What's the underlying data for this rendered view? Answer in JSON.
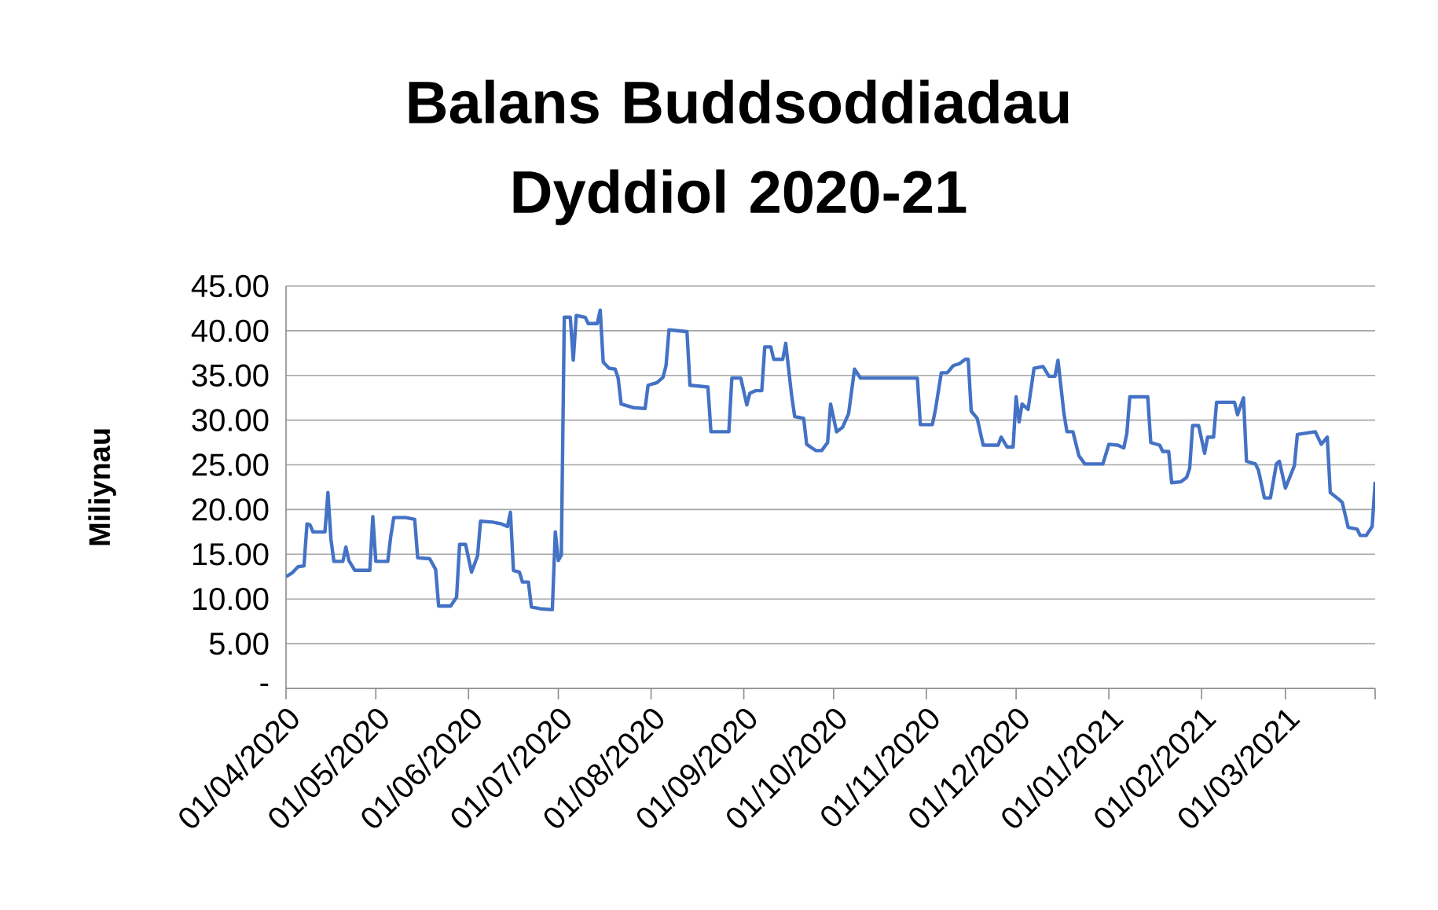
{
  "chart_data": {
    "type": "line",
    "title": "Balans Buddsoddiadau Dyddiol 2020-21",
    "ylabel": "Miliynau",
    "grid": "y",
    "xlim": [
      "2020-04-01",
      "2021-03-31"
    ],
    "xticks": [
      {
        "value": "2020-04-01",
        "label": "01/04/2020"
      },
      {
        "value": "2020-05-01",
        "label": "01/05/2020"
      },
      {
        "value": "2020-06-01",
        "label": "01/06/2020"
      },
      {
        "value": "2020-07-01",
        "label": "01/07/2020"
      },
      {
        "value": "2020-08-01",
        "label": "01/08/2020"
      },
      {
        "value": "2020-09-01",
        "label": "01/09/2020"
      },
      {
        "value": "2020-10-01",
        "label": "01/10/2020"
      },
      {
        "value": "2020-11-01",
        "label": "01/11/2020"
      },
      {
        "value": "2020-12-01",
        "label": "01/12/2020"
      },
      {
        "value": "2021-01-01",
        "label": "01/01/2021"
      },
      {
        "value": "2021-02-01",
        "label": "01/02/2021"
      },
      {
        "value": "2021-03-01",
        "label": "01/03/2021"
      },
      {
        "value": "2021-03-31",
        "label": null
      }
    ],
    "ylim": [
      0,
      45
    ],
    "yticks": [
      {
        "value": 0,
        "label": "-"
      },
      {
        "value": 5,
        "label": "5.00"
      },
      {
        "value": 10,
        "label": "10.00"
      },
      {
        "value": 15,
        "label": "15.00"
      },
      {
        "value": 20,
        "label": "20.00"
      },
      {
        "value": 25,
        "label": "25.00"
      },
      {
        "value": 30,
        "label": "30.00"
      },
      {
        "value": 35,
        "label": "35.00"
      },
      {
        "value": 40,
        "label": "40.00"
      },
      {
        "value": 45,
        "label": "45.00"
      }
    ],
    "x": [
      "2020-04-01",
      "2020-04-03",
      "2020-04-05",
      "2020-04-07",
      "2020-04-08",
      "2020-04-09",
      "2020-04-10",
      "2020-04-14",
      "2020-04-15",
      "2020-04-16",
      "2020-04-17",
      "2020-04-20",
      "2020-04-21",
      "2020-04-22",
      "2020-04-24",
      "2020-04-29",
      "2020-04-30",
      "2020-05-01",
      "2020-05-05",
      "2020-05-06",
      "2020-05-07",
      "2020-05-11",
      "2020-05-14",
      "2020-05-15",
      "2020-05-19",
      "2020-05-21",
      "2020-05-22",
      "2020-05-26",
      "2020-05-28",
      "2020-05-29",
      "2020-05-31",
      "2020-06-02",
      "2020-06-04",
      "2020-06-05",
      "2020-06-09",
      "2020-06-12",
      "2020-06-14",
      "2020-06-15",
      "2020-06-16",
      "2020-06-18",
      "2020-06-19",
      "2020-06-21",
      "2020-06-22",
      "2020-06-25",
      "2020-06-29",
      "2020-06-30",
      "2020-07-01",
      "2020-07-02",
      "2020-07-03",
      "2020-07-05",
      "2020-07-06",
      "2020-07-07",
      "2020-07-10",
      "2020-07-11",
      "2020-07-14",
      "2020-07-15",
      "2020-07-16",
      "2020-07-18",
      "2020-07-20",
      "2020-07-21",
      "2020-07-22",
      "2020-07-26",
      "2020-07-30",
      "2020-07-31",
      "2020-08-03",
      "2020-08-05",
      "2020-08-06",
      "2020-08-07",
      "2020-08-13",
      "2020-08-14",
      "2020-08-20",
      "2020-08-21",
      "2020-08-27",
      "2020-08-28",
      "2020-08-31",
      "2020-09-02",
      "2020-09-03",
      "2020-09-05",
      "2020-09-07",
      "2020-09-08",
      "2020-09-10",
      "2020-09-11",
      "2020-09-14",
      "2020-09-15",
      "2020-09-17",
      "2020-09-18",
      "2020-09-21",
      "2020-09-22",
      "2020-09-25",
      "2020-09-27",
      "2020-09-29",
      "2020-09-30",
      "2020-10-02",
      "2020-10-04",
      "2020-10-06",
      "2020-10-08",
      "2020-10-10",
      "2020-10-29",
      "2020-10-30",
      "2020-11-03",
      "2020-11-04",
      "2020-11-06",
      "2020-11-08",
      "2020-11-10",
      "2020-11-12",
      "2020-11-14",
      "2020-11-15",
      "2020-11-16",
      "2020-11-18",
      "2020-11-20",
      "2020-11-25",
      "2020-11-26",
      "2020-11-28",
      "2020-11-30",
      "2020-12-01",
      "2020-12-02",
      "2020-12-03",
      "2020-12-05",
      "2020-12-07",
      "2020-12-10",
      "2020-12-12",
      "2020-12-14",
      "2020-12-15",
      "2020-12-17",
      "2020-12-18",
      "2020-12-20",
      "2020-12-22",
      "2020-12-24",
      "2020-12-30",
      "2021-01-01",
      "2021-01-04",
      "2021-01-06",
      "2021-01-07",
      "2021-01-08",
      "2021-01-14",
      "2021-01-15",
      "2021-01-18",
      "2021-01-19",
      "2021-01-21",
      "2021-01-22",
      "2021-01-25",
      "2021-01-27",
      "2021-01-28",
      "2021-01-29",
      "2021-01-31",
      "2021-02-02",
      "2021-02-03",
      "2021-02-05",
      "2021-02-06",
      "2021-02-12",
      "2021-02-13",
      "2021-02-15",
      "2021-02-16",
      "2021-02-19",
      "2021-02-20",
      "2021-02-22",
      "2021-02-24",
      "2021-02-26",
      "2021-02-27",
      "2021-03-01",
      "2021-03-04",
      "2021-03-05",
      "2021-03-11",
      "2021-03-13",
      "2021-03-15",
      "2021-03-16",
      "2021-03-19",
      "2021-03-20",
      "2021-03-22",
      "2021-03-25",
      "2021-03-26",
      "2021-03-28",
      "2021-03-30",
      "2021-03-31"
    ],
    "series": [
      {
        "color": "#4472c4",
        "values": [
          12.5,
          12.9,
          13.6,
          13.7,
          18.4,
          18.3,
          17.5,
          17.5,
          21.9,
          16.7,
          14.2,
          14.2,
          15.8,
          14.3,
          13.2,
          13.2,
          19.2,
          14.2,
          14.2,
          17.0,
          19.1,
          19.1,
          18.9,
          14.6,
          14.5,
          13.3,
          9.2,
          9.2,
          10.2,
          16.1,
          16.1,
          13.0,
          14.8,
          18.7,
          18.6,
          18.4,
          18.1,
          19.7,
          13.2,
          13.0,
          11.9,
          11.9,
          9.1,
          8.9,
          8.8,
          17.5,
          14.3,
          14.9,
          41.5,
          41.5,
          36.7,
          41.7,
          41.5,
          40.8,
          40.8,
          42.3,
          36.5,
          35.8,
          35.7,
          34.7,
          31.8,
          31.4,
          31.3,
          33.9,
          34.2,
          34.8,
          36.1,
          40.1,
          39.9,
          33.9,
          33.7,
          28.7,
          28.7,
          34.7,
          34.7,
          31.7,
          33.0,
          33.3,
          33.3,
          38.2,
          38.2,
          36.8,
          36.8,
          38.6,
          32.7,
          30.4,
          30.2,
          27.3,
          26.6,
          26.6,
          27.5,
          31.8,
          28.7,
          29.2,
          30.7,
          35.7,
          34.7,
          34.7,
          29.5,
          29.5,
          31.1,
          35.3,
          35.3,
          36.1,
          36.3,
          36.8,
          36.8,
          31.0,
          30.2,
          27.2,
          27.2,
          28.1,
          27.0,
          27.0,
          32.6,
          29.8,
          31.8,
          31.2,
          35.8,
          36.0,
          34.9,
          34.9,
          36.7,
          30.7,
          28.7,
          28.7,
          26.0,
          25.1,
          25.1,
          27.3,
          27.2,
          26.9,
          28.5,
          32.6,
          32.6,
          27.5,
          27.2,
          26.5,
          26.5,
          23.0,
          23.1,
          23.6,
          24.6,
          29.4,
          29.4,
          26.3,
          28.1,
          28.1,
          32.0,
          32.0,
          30.6,
          32.5,
          25.4,
          25.1,
          24.4,
          21.3,
          21.3,
          25.1,
          25.4,
          22.4,
          24.9,
          28.4,
          28.7,
          27.3,
          28.1,
          21.9,
          21.1,
          20.8,
          18.0,
          17.8,
          17.1,
          17.1,
          18.1,
          23.1
        ]
      }
    ]
  }
}
